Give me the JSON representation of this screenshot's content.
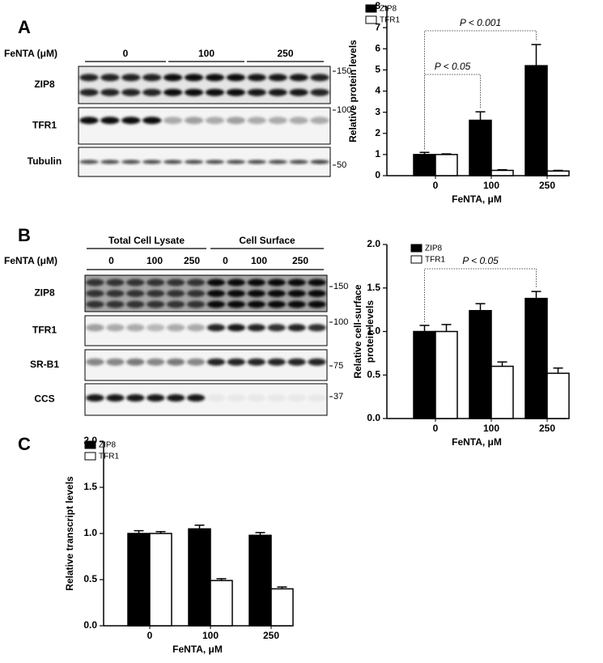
{
  "blots": [
    {
      "letter": "A",
      "treatment": "FeNTA (μM)",
      "supergroups": [],
      "groups": [
        "0",
        "100",
        "250"
      ],
      "rows": [
        {
          "label": "ZIP8",
          "marker": "150"
        },
        {
          "label": "TFR1",
          "marker": "100"
        },
        {
          "label": "Tubulin",
          "marker": "50"
        }
      ]
    },
    {
      "letter": "B",
      "treatment": "FeNTA (μM)",
      "supergroups": [
        "Total Cell Lysate",
        "Cell Surface"
      ],
      "groups": [
        "0",
        "100",
        "250",
        "0",
        "100",
        "250"
      ],
      "rows": [
        {
          "label": "ZIP8",
          "marker": "150"
        },
        {
          "label": "TFR1",
          "marker": "100"
        },
        {
          "label": "SR-B1",
          "marker": "75"
        },
        {
          "label": "CCS",
          "marker": "37"
        }
      ]
    }
  ],
  "chart_data": [
    {
      "type": "bar",
      "ylabel": [
        "Relative protein levels"
      ],
      "xlabel": "FeNTA, μM",
      "categories": [
        "0",
        "100",
        "250"
      ],
      "series": [
        {
          "name": "ZIP8",
          "color": "#000000",
          "values": [
            1.0,
            2.62,
            5.2
          ],
          "errors": [
            0.1,
            0.4,
            1.0
          ]
        },
        {
          "name": "TFR1",
          "color": "#ffffff",
          "values": [
            1.0,
            0.25,
            0.22
          ],
          "errors": [
            0.03,
            0.03,
            0.03
          ]
        }
      ],
      "ylim": [
        0,
        8
      ],
      "yticks": [
        0,
        1,
        2,
        3,
        4,
        5,
        6,
        7,
        8
      ],
      "annotations": [
        "P < 0.05",
        "P < 0.001"
      ]
    },
    {
      "type": "bar",
      "letter": "",
      "ylabel": [
        "Relative cell-surface",
        "protein levels"
      ],
      "xlabel": "FeNTA, μM",
      "categories": [
        "0",
        "100",
        "250"
      ],
      "series": [
        {
          "name": "ZIP8",
          "color": "#000000",
          "values": [
            1.0,
            1.24,
            1.38
          ],
          "errors": [
            0.07,
            0.08,
            0.08
          ]
        },
        {
          "name": "TFR1",
          "color": "#ffffff",
          "values": [
            1.0,
            0.6,
            0.52
          ],
          "errors": [
            0.08,
            0.05,
            0.06
          ]
        }
      ],
      "ylim": [
        0,
        2.0
      ],
      "yticks": [
        {
          "value": 0,
          "label": "0.0"
        },
        0.5,
        {
          "value": 1,
          "label": "1.0"
        },
        1.5,
        {
          "value": 2,
          "label": "2.0"
        }
      ],
      "annotations": [
        "P < 0.05"
      ]
    },
    {
      "type": "bar",
      "letter": "C",
      "ylabel": [
        "Relative transcript levels"
      ],
      "xlabel": "FeNTA, μM",
      "categories": [
        "0",
        "100",
        "250"
      ],
      "series": [
        {
          "name": "ZIP8",
          "color": "#000000",
          "values": [
            1.0,
            1.05,
            0.98
          ],
          "errors": [
            0.03,
            0.04,
            0.03
          ]
        },
        {
          "name": "TFR1",
          "color": "#ffffff",
          "values": [
            1.0,
            0.49,
            0.4
          ],
          "errors": [
            0.02,
            0.02,
            0.02
          ]
        }
      ],
      "ylim": [
        0,
        2.0
      ],
      "yticks": [
        {
          "value": 0,
          "label": "0.0"
        },
        0.5,
        {
          "value": 1,
          "label": "1.0"
        },
        1.5,
        {
          "value": 2,
          "label": "2.0"
        }
      ],
      "annotations": []
    }
  ]
}
